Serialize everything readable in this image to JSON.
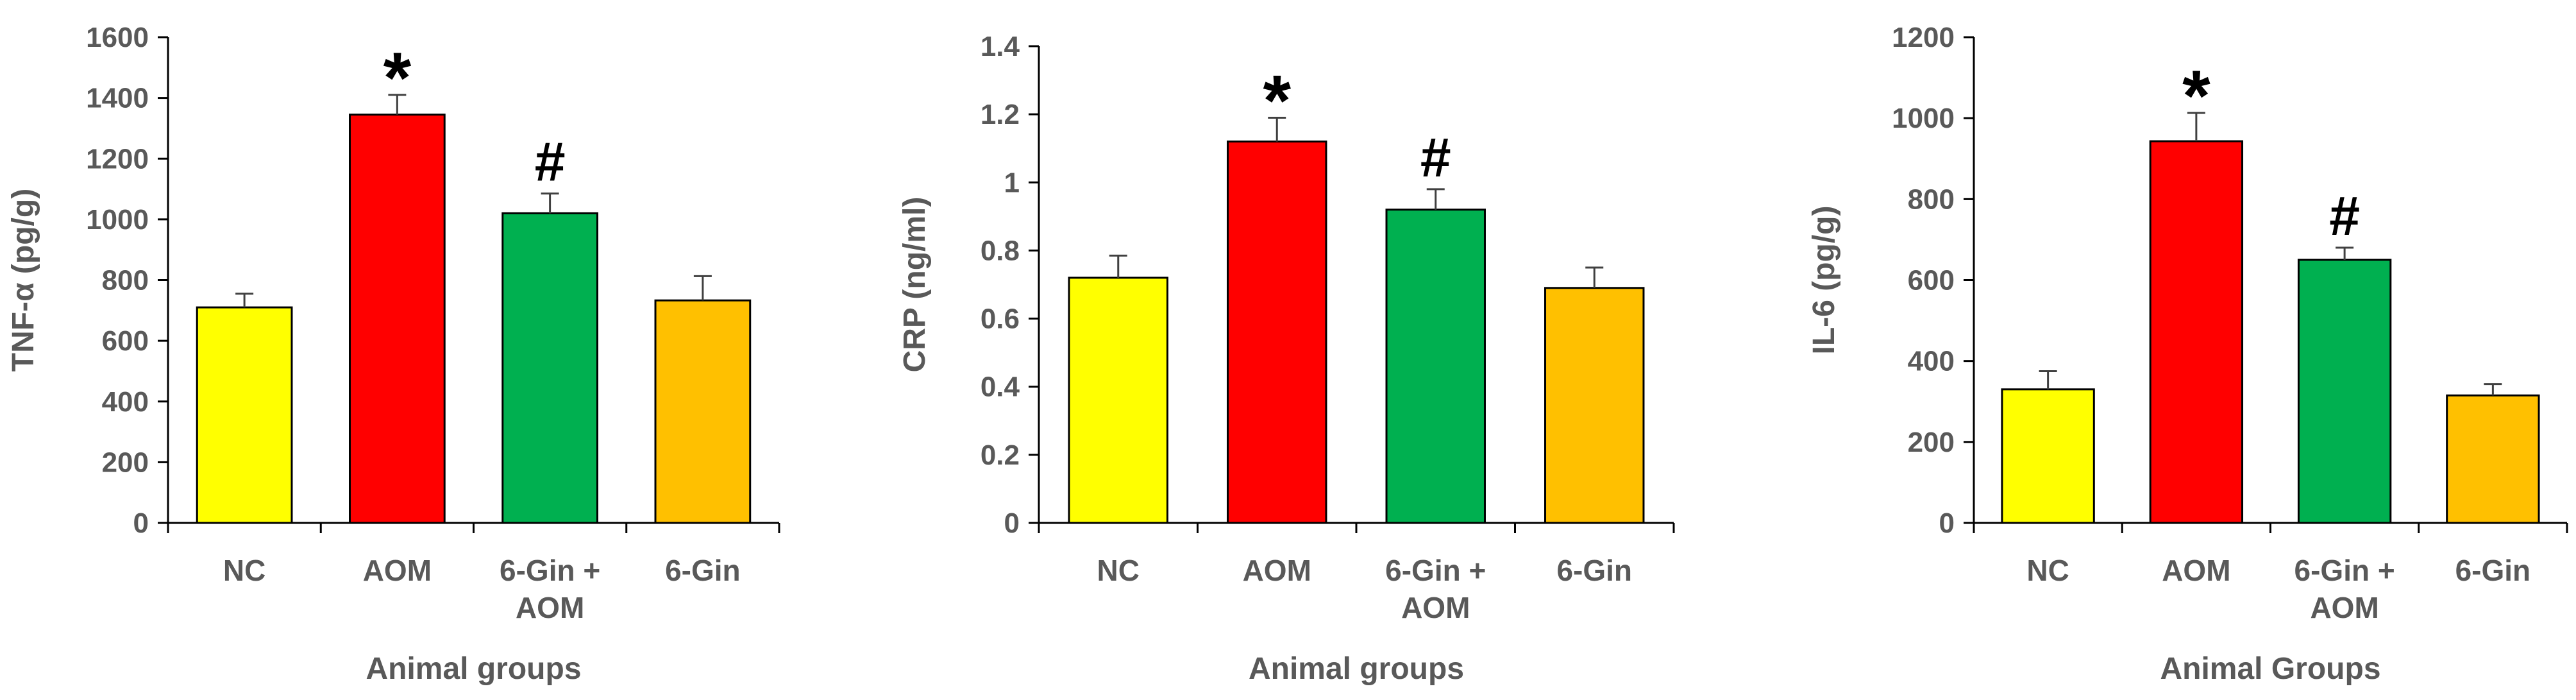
{
  "chart_data": [
    {
      "type": "bar",
      "title": "",
      "xlabel": "Animal groups",
      "ylabel": "TNF-α (pg/g)",
      "ylim": [
        0,
        1600
      ],
      "yticks": [
        "0",
        "200",
        "400",
        "600",
        "800",
        "1000",
        "1200",
        "1400",
        "1600"
      ],
      "categories": [
        "NC",
        "AOM",
        "6-Gin + AOM",
        "6-Gin"
      ],
      "category_lines": [
        [
          "NC"
        ],
        [
          "AOM"
        ],
        [
          "6-Gin +",
          "AOM"
        ],
        [
          "6-Gin"
        ]
      ],
      "values": [
        710,
        1345,
        1020,
        733
      ],
      "errors": [
        45,
        65,
        65,
        80
      ],
      "annotations": [
        "",
        "*",
        "#",
        ""
      ],
      "colors": [
        "#FFFF00",
        "#FF0000",
        "#00B050",
        "#FFC000"
      ]
    },
    {
      "type": "bar",
      "title": "",
      "xlabel": "Animal groups",
      "ylabel": "CRP (ng/ml)",
      "ylim": [
        0,
        1.4
      ],
      "yticks": [
        "0",
        "0.2",
        "0.4",
        "0.6",
        "0.8",
        "1",
        "1.2",
        "1.4"
      ],
      "categories": [
        "NC",
        "AOM",
        "6-Gin + AOM",
        "6-Gin"
      ],
      "category_lines": [
        [
          "NC"
        ],
        [
          "AOM"
        ],
        [
          "6-Gin +",
          "AOM"
        ],
        [
          "6-Gin"
        ]
      ],
      "values": [
        0.72,
        1.12,
        0.92,
        0.69
      ],
      "errors": [
        0.065,
        0.07,
        0.06,
        0.06
      ],
      "annotations": [
        "",
        "*",
        "#",
        ""
      ],
      "colors": [
        "#FFFF00",
        "#FF0000",
        "#00B050",
        "#FFC000"
      ]
    },
    {
      "type": "bar",
      "title": "",
      "xlabel": "Animal Groups",
      "ylabel": "IL-6 (pg/g)",
      "ylim": [
        0,
        1200
      ],
      "yticks": [
        "0",
        "200",
        "400",
        "600",
        "800",
        "1000",
        "1200"
      ],
      "categories": [
        "NC",
        "AOM",
        "6-Gin + AOM",
        "6-Gin"
      ],
      "category_lines": [
        [
          "NC"
        ],
        [
          "AOM"
        ],
        [
          "6-Gin +",
          "AOM"
        ],
        [
          "6-Gin"
        ]
      ],
      "values": [
        330,
        943,
        650,
        315
      ],
      "errors": [
        45,
        70,
        30,
        28
      ],
      "annotations": [
        "",
        "*",
        "#",
        ""
      ],
      "colors": [
        "#FFFF00",
        "#FF0000",
        "#00B050",
        "#FFC000"
      ]
    }
  ]
}
